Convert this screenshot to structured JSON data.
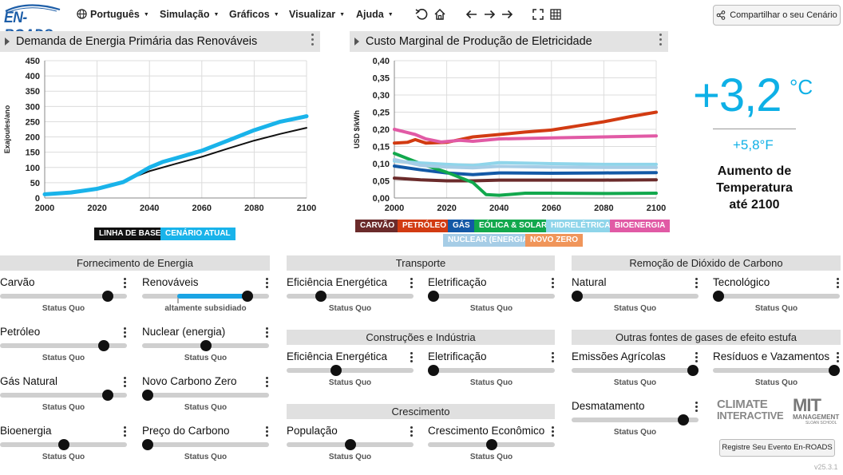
{
  "app": {
    "logo_text": "EN-ROADS",
    "version": "v25.3.1"
  },
  "menu": [
    {
      "label": "Português",
      "icon": "globe-icon"
    },
    {
      "label": "Simulação"
    },
    {
      "label": "Gráficos"
    },
    {
      "label": "Visualizar"
    },
    {
      "label": "Ajuda"
    }
  ],
  "toolbar_icons": [
    "undo-icon",
    "home-icon",
    "back-arrow-icon",
    "forward-arrow-icon",
    "fullscreen-icon",
    "grid-icon"
  ],
  "share_button": {
    "label": "Compartilhar o seu Cenário",
    "icon": "share-icon"
  },
  "left_graph": {
    "title": "Demanda de Energia Primária das Renováveis",
    "chart_data": {
      "type": "line",
      "ylabel": "Exajoules/ano",
      "xlabel": "",
      "xlim": [
        2000,
        2100
      ],
      "ylim": [
        0,
        450
      ],
      "x_ticks": [
        "2000",
        "2020",
        "2040",
        "2060",
        "2080",
        "2100"
      ],
      "y_ticks": [
        "0",
        "50",
        "100",
        "150",
        "200",
        "250",
        "300",
        "350",
        "400",
        "450"
      ],
      "grid": true,
      "series": [
        {
          "name": "LINHA DE BASE",
          "color": "#111111",
          "x": [
            2000,
            2010,
            2020,
            2030,
            2040,
            2050,
            2060,
            2070,
            2080,
            2090,
            2100
          ],
          "y": [
            10,
            15,
            28,
            55,
            88,
            112,
            135,
            162,
            188,
            210,
            230
          ]
        },
        {
          "name": "CENÁRIO ATUAL",
          "color": "#19b3ea",
          "x": [
            2000,
            2010,
            2020,
            2030,
            2035,
            2040,
            2045,
            2050,
            2060,
            2070,
            2080,
            2090,
            2100
          ],
          "y": [
            12,
            18,
            30,
            52,
            75,
            100,
            118,
            130,
            155,
            188,
            222,
            250,
            268
          ]
        }
      ]
    }
  },
  "right_graph": {
    "title": "Custo Marginal de Produção de Eletricidade",
    "chart_data": {
      "type": "line",
      "ylabel": "USD $/kWh",
      "xlim": [
        2000,
        2100
      ],
      "ylim": [
        0,
        0.4
      ],
      "x_ticks": [
        "2000",
        "2020",
        "2040",
        "2060",
        "2080",
        "2100"
      ],
      "y_ticks": [
        "0,00",
        "0,05",
        "0,10",
        "0,15",
        "0,20",
        "0,25",
        "0,30",
        "0,35",
        "0,40"
      ],
      "grid": true,
      "series": [
        {
          "name": "CARVÃO",
          "color": "#6b2b2b",
          "x": [
            2000,
            2010,
            2020,
            2030,
            2040,
            2060,
            2080,
            2100
          ],
          "y": [
            0.058,
            0.053,
            0.05,
            0.05,
            0.052,
            0.052,
            0.052,
            0.053
          ]
        },
        {
          "name": "PETRÓLEO",
          "color": "#d23b12",
          "x": [
            2000,
            2005,
            2008,
            2012,
            2020,
            2030,
            2040,
            2050,
            2060,
            2070,
            2080,
            2090,
            2100
          ],
          "y": [
            0.16,
            0.162,
            0.17,
            0.16,
            0.162,
            0.178,
            0.185,
            0.192,
            0.198,
            0.21,
            0.222,
            0.237,
            0.25
          ]
        },
        {
          "name": "GÁS",
          "color": "#1359a6",
          "x": [
            2000,
            2010,
            2020,
            2030,
            2040,
            2060,
            2080,
            2100
          ],
          "y": [
            0.093,
            0.082,
            0.073,
            0.068,
            0.073,
            0.072,
            0.073,
            0.074
          ]
        },
        {
          "name": "EÓLICA & SOLAR",
          "color": "#12a84d",
          "x": [
            2000,
            2010,
            2020,
            2030,
            2035,
            2040,
            2050,
            2060,
            2080,
            2100
          ],
          "y": [
            0.13,
            0.1,
            0.075,
            0.045,
            0.01,
            0.008,
            0.014,
            0.014,
            0.013,
            0.014
          ]
        },
        {
          "name": "HIDRELÉTRICA",
          "color": "#8fd5ea",
          "x": [
            2000,
            2010,
            2020,
            2030,
            2040,
            2060,
            2080,
            2100
          ],
          "y": [
            0.108,
            0.102,
            0.098,
            0.095,
            0.103,
            0.1,
            0.098,
            0.098
          ]
        },
        {
          "name": "BIOENERGIA",
          "color": "#e15aa5",
          "x": [
            2000,
            2008,
            2012,
            2018,
            2025,
            2030,
            2040,
            2060,
            2080,
            2100
          ],
          "y": [
            0.2,
            0.185,
            0.172,
            0.163,
            0.168,
            0.165,
            0.172,
            0.175,
            0.178,
            0.181
          ]
        },
        {
          "name": "NUCLEAR (ENERGIA)",
          "color": "#a6cde6",
          "x": [
            2000,
            2010,
            2020,
            2030,
            2040,
            2060,
            2080,
            2100
          ],
          "y": [
            0.112,
            0.095,
            0.09,
            0.088,
            0.092,
            0.09,
            0.089,
            0.089
          ]
        },
        {
          "name": "NOVO ZERO",
          "color": "#f0955a",
          "x": [],
          "y": []
        }
      ]
    }
  },
  "temperature": {
    "value_c": "+3,2",
    "unit_c": "°C",
    "value_f": "+5,8°F",
    "label_line1": "Aumento de",
    "label_line2": "Temperatura",
    "label_line3": "até 2100"
  },
  "sections": {
    "supply": "Fornecimento de Energia",
    "transport": "Transporte",
    "buildings": "Construções e Indústria",
    "growth": "Crescimento",
    "removal": "Remoção de Dióxido de Carbono",
    "other_gases": "Outras fontes de gases de efeito estufa"
  },
  "sliders": [
    {
      "label": "Carvão",
      "status": "Status Quo",
      "value": 0.88
    },
    {
      "label": "Renováveis",
      "status": "altamente subsidiado",
      "value": 0.86
    },
    {
      "label": "Petróleo",
      "status": "Status Quo",
      "value": 0.85
    },
    {
      "label": "Nuclear (energia)",
      "status": "Status Quo",
      "value": 0.5
    },
    {
      "label": "Gás Natural",
      "status": "Status Quo",
      "value": 0.88
    },
    {
      "label": "Novo Carbono Zero",
      "status": "Status Quo",
      "value": 0.0
    },
    {
      "label": "Bioenergia",
      "status": "Status Quo",
      "value": 0.5
    },
    {
      "label": "Preço do Carbono",
      "status": "Status Quo",
      "value": 0.0
    },
    {
      "label": "Eficiência Energética",
      "status": "Status Quo",
      "value": 0.25
    },
    {
      "label": "Eletrificação",
      "status": "Status Quo",
      "value": 0.0
    },
    {
      "label": "Eficiência Energética",
      "status": "Status Quo",
      "value": 0.38
    },
    {
      "label": "Eletrificação",
      "status": "Status Quo",
      "value": 0.0
    },
    {
      "label": "População",
      "status": "Status Quo",
      "value": 0.5
    },
    {
      "label": "Crescimento Econômico",
      "status": "Status Quo",
      "value": 0.5
    },
    {
      "label": "Natural",
      "status": "Status Quo",
      "value": 0.0
    },
    {
      "label": "Tecnológico",
      "status": "Status Quo",
      "value": 0.0
    },
    {
      "label": "Emissões Agrícolas",
      "status": "Status Quo",
      "value": 1.0
    },
    {
      "label": "Resíduos e Vazamentos",
      "status": "Status Quo",
      "value": 1.0
    },
    {
      "label": "Desmatamento",
      "status": "Status Quo",
      "value": 0.92
    }
  ],
  "logos": {
    "climate_interactive_line1": "CLIMATE",
    "climate_interactive_line2": "INTERACTIVE",
    "mit_line1": "MIT",
    "mit_line2": "MANAGEMENT",
    "mit_line3": "SLOAN SCHOOL"
  },
  "register_button": "Registre Seu Evento En-ROADS"
}
